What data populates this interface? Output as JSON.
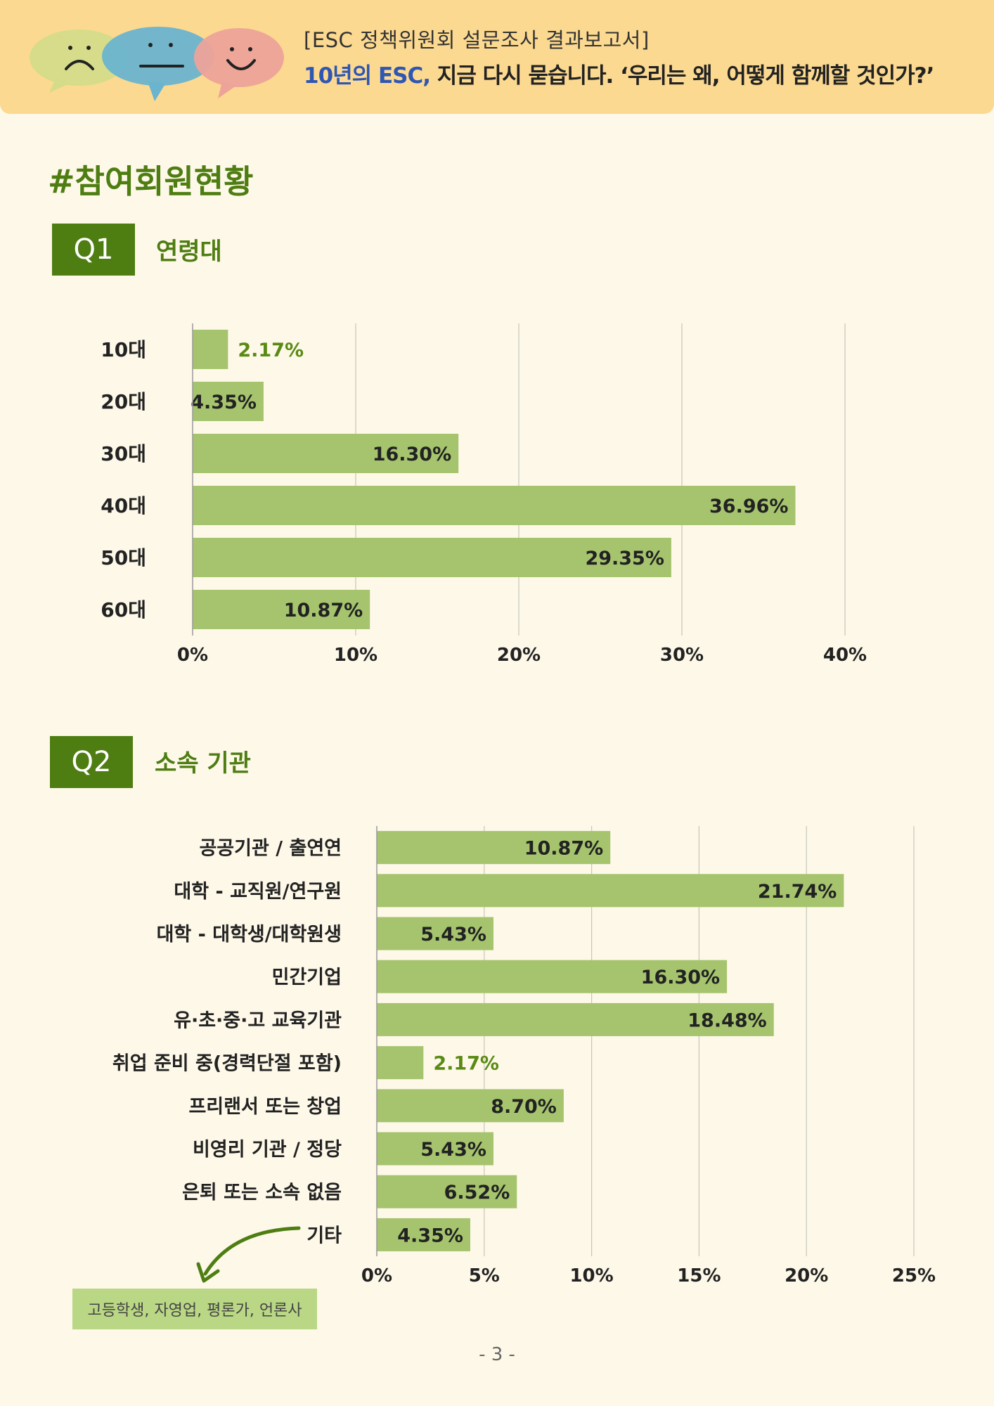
{
  "header": {
    "subtitle": "[ESC 정책위원회 설문조사 결과보고서]",
    "title_accent": "10년의 ESC,",
    "title_rest": " 지금 다시 묻습니다. ‘우리는 왜, 어떻게 함께할 것인가?’"
  },
  "section_title": "#참여회원현황",
  "q1": {
    "badge": "Q1",
    "label": "연령대"
  },
  "q2": {
    "badge": "Q2",
    "label": "소속 기관",
    "note": "고등학생, 자영업, 평론가, 언론사"
  },
  "page_number": "- 3 -",
  "colors": {
    "bar": "#a5c46d",
    "accent_green": "#4e7d12",
    "outside_label": "#5a8a14",
    "header_bg": "#fcd990",
    "page_bg": "#fdf8e8"
  },
  "chart_data": [
    {
      "type": "bar",
      "orientation": "horizontal",
      "categories": [
        "10대",
        "20대",
        "30대",
        "40대",
        "50대",
        "60대"
      ],
      "values": [
        2.17,
        4.35,
        16.3,
        36.96,
        29.35,
        10.87
      ],
      "value_labels": [
        "2.17%",
        "4.35%",
        "16.30%",
        "36.96%",
        "29.35%",
        "10.87%"
      ],
      "xlim": [
        0,
        40
      ],
      "ticks": [
        0,
        10,
        20,
        30,
        40
      ],
      "tick_labels": [
        "0%",
        "10%",
        "20%",
        "30%",
        "40%"
      ],
      "grid": true
    },
    {
      "type": "bar",
      "orientation": "horizontal",
      "categories": [
        "공공기관 / 출연연",
        "대학 - 교직원/연구원",
        "대학 - 대학생/대학원생",
        "민간기업",
        "유·초·중·고 교육기관",
        "취업 준비 중(경력단절 포함)",
        "프리랜서 또는 창업",
        "비영리 기관 / 정당",
        "은퇴 또는 소속 없음",
        "기타"
      ],
      "values": [
        10.87,
        21.74,
        5.43,
        16.3,
        18.48,
        2.17,
        8.7,
        5.43,
        6.52,
        4.35
      ],
      "value_labels": [
        "10.87%",
        "21.74%",
        "5.43%",
        "16.30%",
        "18.48%",
        "2.17%",
        "8.70%",
        "5.43%",
        "6.52%",
        "4.35%"
      ],
      "xlim": [
        0,
        25
      ],
      "ticks": [
        0,
        5,
        10,
        15,
        20,
        25
      ],
      "tick_labels": [
        "0%",
        "5%",
        "10%",
        "15%",
        "20%",
        "25%"
      ],
      "grid": true
    }
  ]
}
